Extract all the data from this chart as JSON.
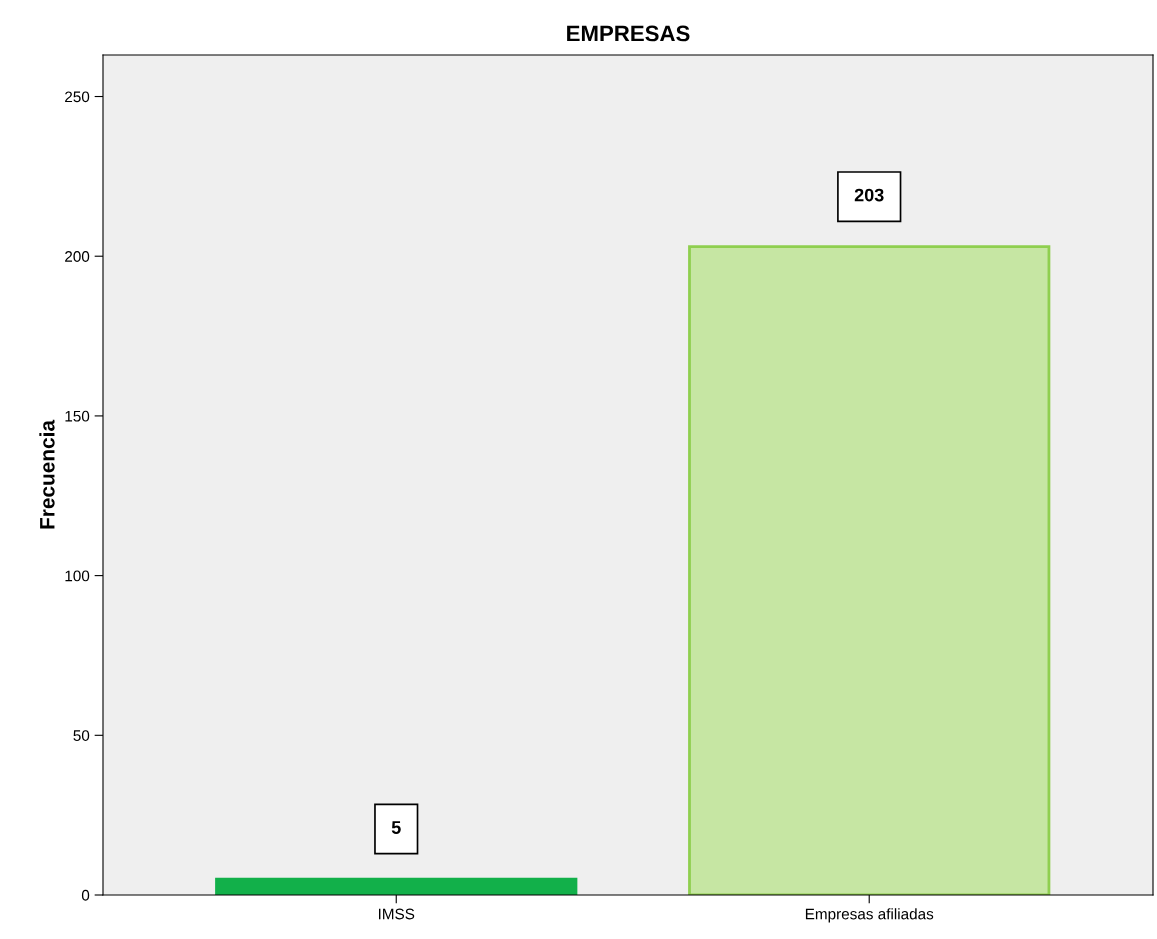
{
  "chart_data": {
    "type": "bar",
    "title": "EMPRESAS",
    "ylabel": "Frecuencia",
    "categories": [
      "IMSS",
      "Empresas afiliadas"
    ],
    "values": [
      5,
      203
    ],
    "colors": [
      "#12b04a",
      "#c6e6a3"
    ],
    "ylim": [
      0,
      263
    ],
    "yticks": [
      0,
      50,
      100,
      150,
      200,
      250
    ],
    "data_labels": true,
    "grid": false,
    "legend": false
  }
}
